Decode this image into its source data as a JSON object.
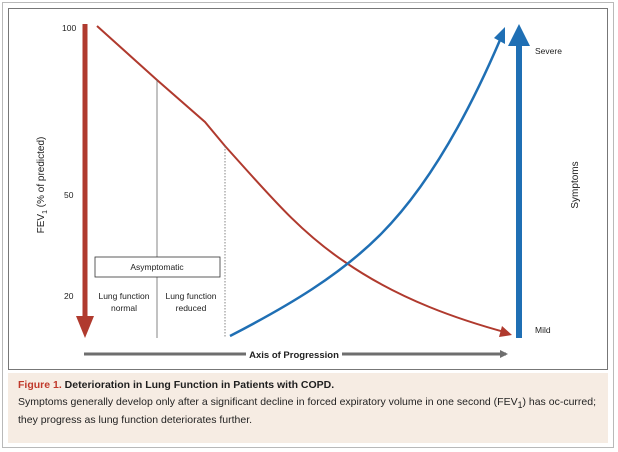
{
  "y_axis": {
    "label_text": "FEV",
    "label_subscript": "1",
    "label_suffix": " (% of predicted)",
    "ticks": [
      "100",
      "50",
      "20"
    ]
  },
  "symptoms_axis": {
    "label": "Symptoms",
    "top": "Severe",
    "bottom": "Mild"
  },
  "x_axis": {
    "label": "Axis of Progression"
  },
  "annotations": {
    "asymptomatic": "Asymptomatic",
    "normal_line1": "Lung function",
    "normal_line2": "normal",
    "reduced_line1": "Lung function",
    "reduced_line2": "reduced"
  },
  "colors": {
    "fev_red": "#b03a2e",
    "symptom_blue": "#1f6fb4",
    "axis_gray": "#6e6e6e"
  },
  "caption": {
    "label": "Figure 1.",
    "title": " Deterioration in Lung Function in Patients with COPD.",
    "body_part1": "Symptoms generally develop only after a significant decline in forced expiratory volume in one second (FEV",
    "body_sub": "1",
    "body_part2": ") has oc-curred; they progress as lung function deteriorates further."
  }
}
